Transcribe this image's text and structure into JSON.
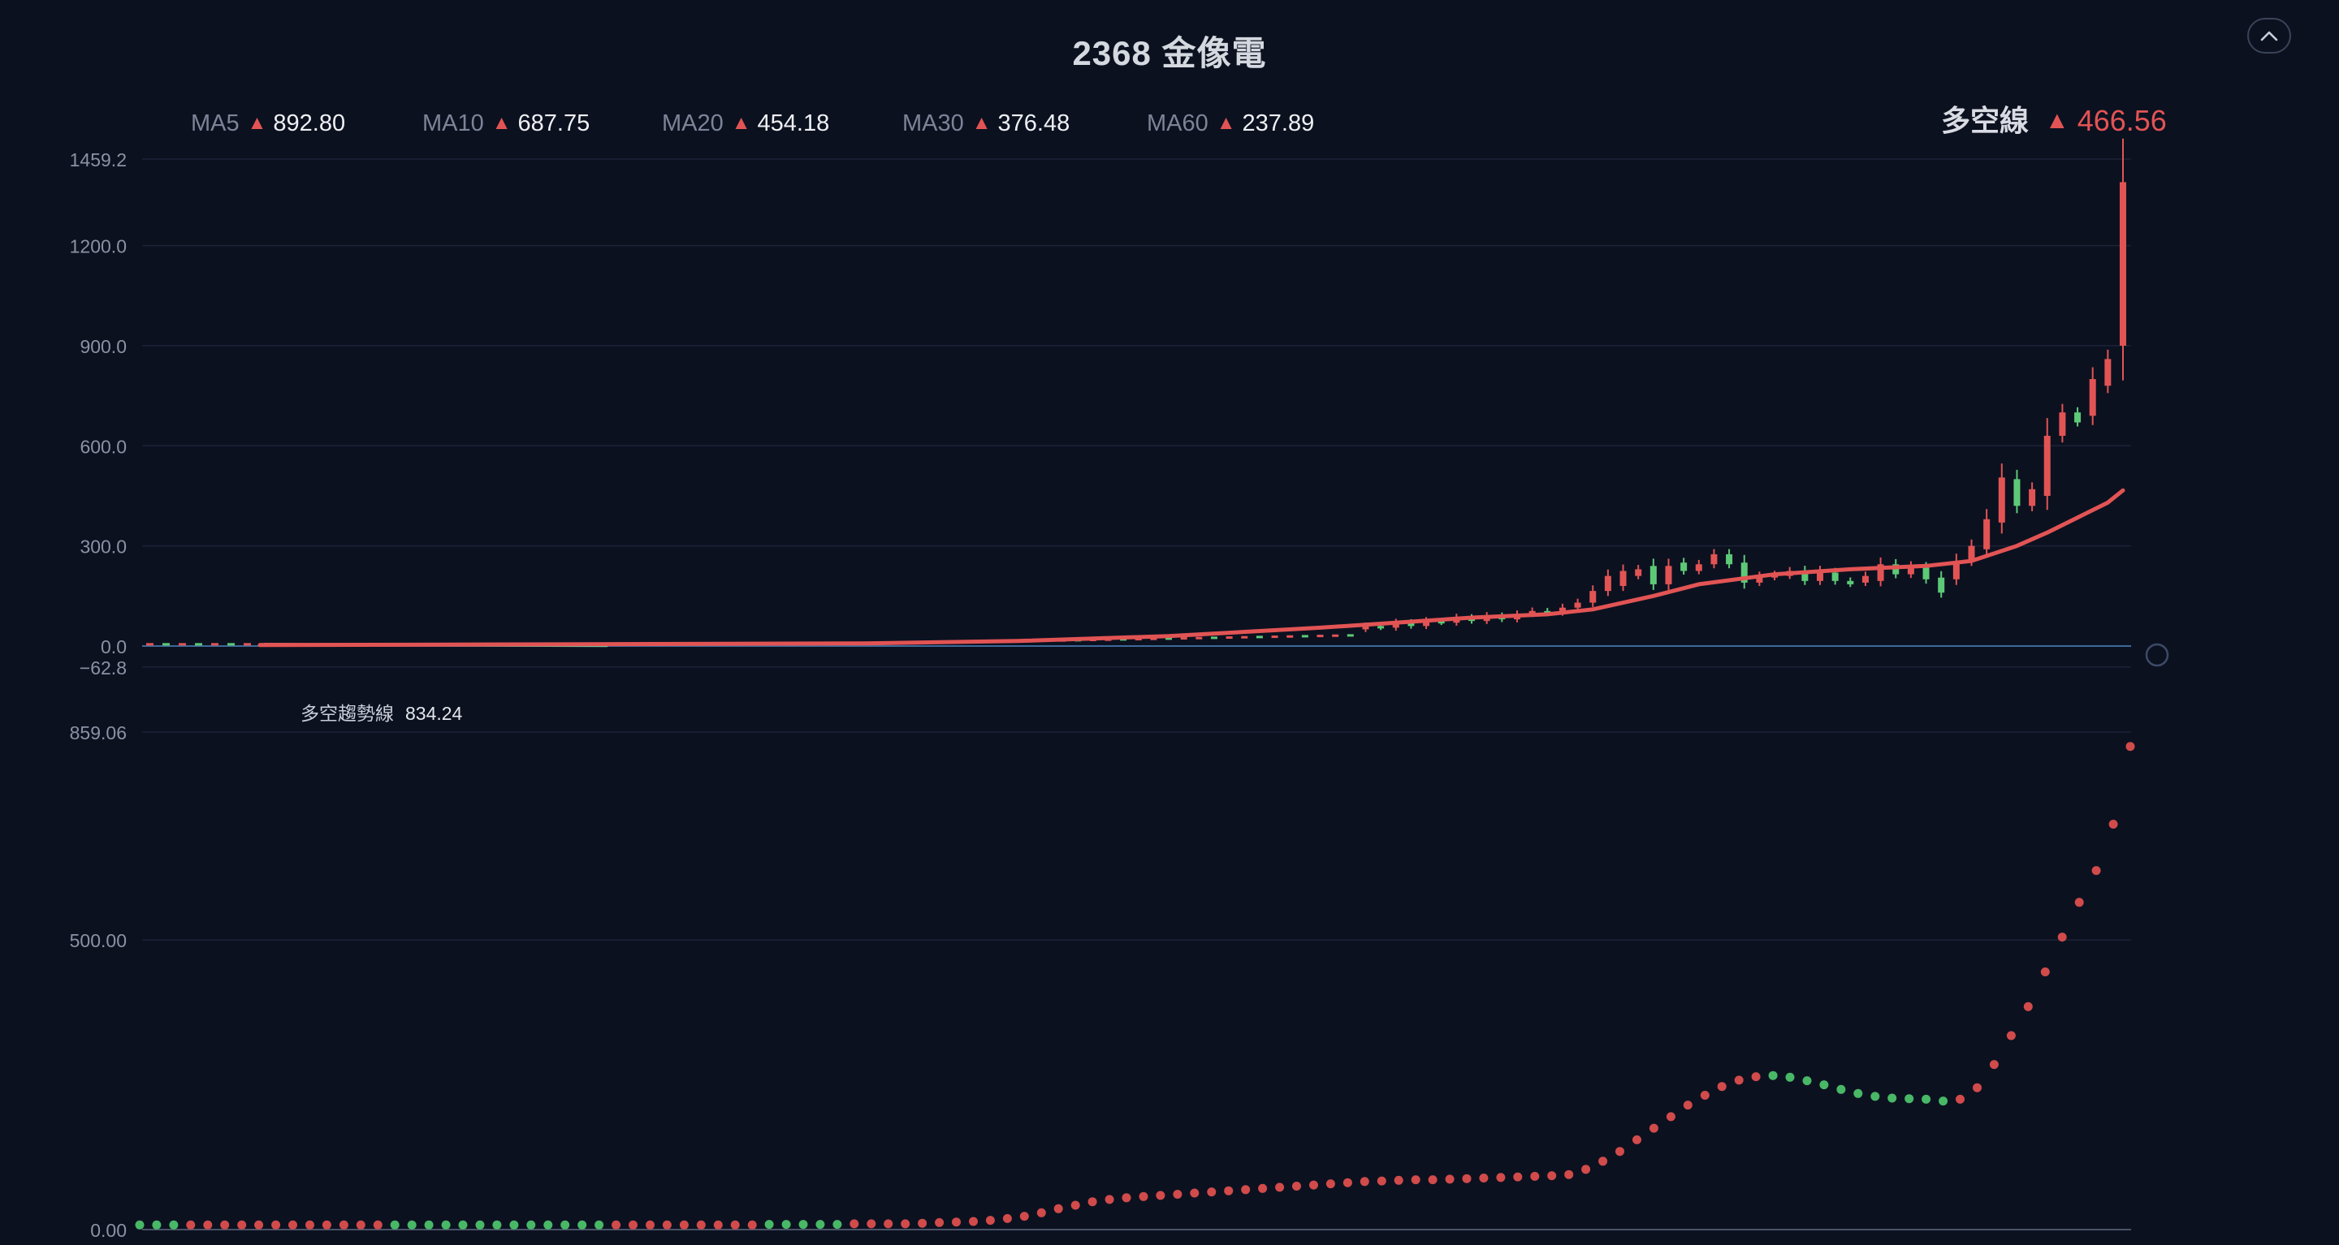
{
  "title": "2368 金像電",
  "icons": {
    "collapse": "chevron-up-icon",
    "indicator": "circle-outline-icon",
    "up_arrow": "triangle-up-icon"
  },
  "colors": {
    "background": "#0c1120",
    "up": "#e25454",
    "down": "#5dc977",
    "line": "#e25454",
    "grid": "#1c2336",
    "axis_text": "#8a92a3",
    "baseline": "#3c6a9a"
  },
  "ma_legend": [
    {
      "name": "MA5",
      "value": "892.80"
    },
    {
      "name": "MA10",
      "value": "687.75"
    },
    {
      "name": "MA20",
      "value": "454.18"
    },
    {
      "name": "MA30",
      "value": "376.48"
    },
    {
      "name": "MA60",
      "value": "237.89"
    }
  ],
  "up_symbol": "▲",
  "dk_legend": {
    "name": "多空線",
    "value": "466.56"
  },
  "sub_legend": {
    "name": "多空趨勢線",
    "value": "834.24"
  },
  "chart_data": [
    {
      "type": "candlestick",
      "title": "",
      "yticks": [
        "1459.2",
        "1200.0",
        "900.0",
        "600.0",
        "300.0",
        "0.0",
        "−62.8"
      ],
      "ylim": [
        -62.8,
        1459.2
      ],
      "grid": true,
      "n_bars": 120,
      "candles": [
        {
          "i": 73,
          "o": 50,
          "c": 60
        },
        {
          "i": 74,
          "o": 60,
          "c": 55
        },
        {
          "i": 75,
          "o": 55,
          "c": 70
        },
        {
          "i": 76,
          "o": 70,
          "c": 60
        },
        {
          "i": 77,
          "o": 60,
          "c": 75
        },
        {
          "i": 78,
          "o": 75,
          "c": 70
        },
        {
          "i": 79,
          "o": 70,
          "c": 85
        },
        {
          "i": 80,
          "o": 85,
          "c": 75
        },
        {
          "i": 81,
          "o": 75,
          "c": 90
        },
        {
          "i": 82,
          "o": 90,
          "c": 80
        },
        {
          "i": 83,
          "o": 80,
          "c": 95
        },
        {
          "i": 84,
          "o": 95,
          "c": 105
        },
        {
          "i": 85,
          "o": 105,
          "c": 100
        },
        {
          "i": 86,
          "o": 100,
          "c": 115
        },
        {
          "i": 87,
          "o": 115,
          "c": 130
        },
        {
          "i": 88,
          "o": 130,
          "c": 165
        },
        {
          "i": 89,
          "o": 165,
          "c": 210
        },
        {
          "i": 90,
          "o": 180,
          "c": 225
        },
        {
          "i": 91,
          "o": 210,
          "c": 230
        },
        {
          "i": 92,
          "o": 240,
          "c": 185
        },
        {
          "i": 93,
          "o": 185,
          "c": 240
        },
        {
          "i": 94,
          "o": 250,
          "c": 225
        },
        {
          "i": 95,
          "o": 225,
          "c": 245
        },
        {
          "i": 96,
          "o": 245,
          "c": 275
        },
        {
          "i": 97,
          "o": 275,
          "c": 245
        },
        {
          "i": 98,
          "o": 250,
          "c": 190
        },
        {
          "i": 99,
          "o": 190,
          "c": 210
        },
        {
          "i": 100,
          "o": 205,
          "c": 215
        },
        {
          "i": 101,
          "o": 210,
          "c": 225
        },
        {
          "i": 102,
          "o": 225,
          "c": 195
        },
        {
          "i": 103,
          "o": 195,
          "c": 225
        },
        {
          "i": 104,
          "o": 220,
          "c": 195
        },
        {
          "i": 105,
          "o": 195,
          "c": 185
        },
        {
          "i": 106,
          "o": 190,
          "c": 210
        },
        {
          "i": 107,
          "o": 195,
          "c": 245
        },
        {
          "i": 108,
          "o": 245,
          "c": 215
        },
        {
          "i": 109,
          "o": 215,
          "c": 240
        },
        {
          "i": 110,
          "o": 235,
          "c": 200
        },
        {
          "i": 111,
          "o": 205,
          "c": 160
        },
        {
          "i": 112,
          "o": 200,
          "c": 255
        },
        {
          "i": 113,
          "o": 255,
          "c": 300
        },
        {
          "i": 114,
          "o": 290,
          "c": 380
        },
        {
          "i": 115,
          "o": 370,
          "c": 505
        },
        {
          "i": 116,
          "o": 500,
          "c": 420
        },
        {
          "i": 117,
          "o": 420,
          "c": 470
        },
        {
          "i": 118,
          "o": 450,
          "c": 630
        },
        {
          "i": 119,
          "o": 630,
          "c": 700
        },
        {
          "i": 120,
          "o": 700,
          "c": 670
        },
        {
          "i": 121,
          "o": 690,
          "c": 800
        },
        {
          "i": 122,
          "o": 780,
          "c": 860
        },
        {
          "i": 123,
          "o": 900,
          "c": 1390
        }
      ],
      "line": {
        "name": "多空線",
        "x": [
          0,
          20,
          40,
          50,
          60,
          70,
          80,
          85,
          88,
          92,
          95,
          100,
          105,
          110,
          113,
          116,
          118,
          120,
          122,
          123
        ],
        "y": [
          3,
          5,
          8,
          15,
          30,
          55,
          85,
          95,
          110,
          150,
          185,
          215,
          230,
          240,
          255,
          300,
          340,
          385,
          430,
          466.56
        ]
      }
    },
    {
      "type": "scatter",
      "title": "",
      "yticks": [
        "859.06",
        "500.00",
        "0.00"
      ],
      "ylim": [
        0,
        859.06
      ],
      "grid": true,
      "n_points": 120,
      "points": [
        {
          "i": 0,
          "v": 8,
          "up": false
        },
        {
          "i": 1,
          "v": 8,
          "up": false
        },
        {
          "i": 2,
          "v": 8,
          "up": false
        },
        {
          "i": 3,
          "v": 8,
          "up": true
        },
        {
          "i": 4,
          "v": 8,
          "up": true
        },
        {
          "i": 5,
          "v": 8,
          "up": true
        },
        {
          "i": 6,
          "v": 8,
          "up": true
        },
        {
          "i": 7,
          "v": 8,
          "up": true
        },
        {
          "i": 8,
          "v": 8,
          "up": true
        },
        {
          "i": 9,
          "v": 8,
          "up": true
        },
        {
          "i": 10,
          "v": 8,
          "up": true
        },
        {
          "i": 11,
          "v": 8,
          "up": true
        },
        {
          "i": 12,
          "v": 8,
          "up": true
        },
        {
          "i": 13,
          "v": 8,
          "up": true
        },
        {
          "i": 14,
          "v": 8,
          "up": true
        },
        {
          "i": 15,
          "v": 8,
          "up": false
        },
        {
          "i": 16,
          "v": 8,
          "up": false
        },
        {
          "i": 17,
          "v": 8,
          "up": false
        },
        {
          "i": 18,
          "v": 8,
          "up": false
        },
        {
          "i": 19,
          "v": 8,
          "up": false
        },
        {
          "i": 20,
          "v": 8,
          "up": false
        },
        {
          "i": 21,
          "v": 8,
          "up": false
        },
        {
          "i": 22,
          "v": 8,
          "up": false
        },
        {
          "i": 23,
          "v": 8,
          "up": false
        },
        {
          "i": 24,
          "v": 8,
          "up": false
        },
        {
          "i": 25,
          "v": 8,
          "up": false
        },
        {
          "i": 26,
          "v": 8,
          "up": false
        },
        {
          "i": 27,
          "v": 8,
          "up": false
        },
        {
          "i": 28,
          "v": 8,
          "up": true
        },
        {
          "i": 29,
          "v": 8,
          "up": true
        },
        {
          "i": 30,
          "v": 8,
          "up": true
        },
        {
          "i": 31,
          "v": 8,
          "up": true
        },
        {
          "i": 32,
          "v": 8,
          "up": true
        },
        {
          "i": 33,
          "v": 8,
          "up": true
        },
        {
          "i": 34,
          "v": 8,
          "up": true
        },
        {
          "i": 35,
          "v": 8,
          "up": true
        },
        {
          "i": 36,
          "v": 8,
          "up": true
        },
        {
          "i": 37,
          "v": 9,
          "up": false
        },
        {
          "i": 38,
          "v": 9,
          "up": false
        },
        {
          "i": 39,
          "v": 9,
          "up": false
        },
        {
          "i": 40,
          "v": 9,
          "up": false
        },
        {
          "i": 41,
          "v": 9,
          "up": false
        },
        {
          "i": 42,
          "v": 10,
          "up": true
        },
        {
          "i": 43,
          "v": 10,
          "up": true
        },
        {
          "i": 44,
          "v": 10,
          "up": true
        },
        {
          "i": 45,
          "v": 10,
          "up": true
        },
        {
          "i": 46,
          "v": 11,
          "up": true
        },
        {
          "i": 47,
          "v": 12,
          "up": true
        },
        {
          "i": 48,
          "v": 13,
          "up": true
        },
        {
          "i": 49,
          "v": 14,
          "up": true
        },
        {
          "i": 50,
          "v": 16,
          "up": true
        },
        {
          "i": 51,
          "v": 19,
          "up": true
        },
        {
          "i": 52,
          "v": 23,
          "up": true
        },
        {
          "i": 53,
          "v": 29,
          "up": true
        },
        {
          "i": 54,
          "v": 36,
          "up": true
        },
        {
          "i": 55,
          "v": 42,
          "up": true
        },
        {
          "i": 56,
          "v": 48,
          "up": true
        },
        {
          "i": 57,
          "v": 52,
          "up": true
        },
        {
          "i": 58,
          "v": 55,
          "up": true
        },
        {
          "i": 59,
          "v": 57,
          "up": true
        },
        {
          "i": 60,
          "v": 59,
          "up": true
        },
        {
          "i": 61,
          "v": 61,
          "up": true
        },
        {
          "i": 62,
          "v": 63,
          "up": true
        },
        {
          "i": 63,
          "v": 65,
          "up": true
        },
        {
          "i": 64,
          "v": 67,
          "up": true
        },
        {
          "i": 65,
          "v": 69,
          "up": true
        },
        {
          "i": 66,
          "v": 71,
          "up": true
        },
        {
          "i": 67,
          "v": 73,
          "up": true
        },
        {
          "i": 68,
          "v": 75,
          "up": true
        },
        {
          "i": 69,
          "v": 77,
          "up": true
        },
        {
          "i": 70,
          "v": 79,
          "up": true
        },
        {
          "i": 71,
          "v": 81,
          "up": true
        },
        {
          "i": 72,
          "v": 83,
          "up": true
        },
        {
          "i": 73,
          "v": 84,
          "up": true
        },
        {
          "i": 74,
          "v": 85,
          "up": true
        },
        {
          "i": 75,
          "v": 86,
          "up": true
        },
        {
          "i": 76,
          "v": 86,
          "up": true
        },
        {
          "i": 77,
          "v": 87,
          "up": true
        },
        {
          "i": 78,
          "v": 88,
          "up": true
        },
        {
          "i": 79,
          "v": 89,
          "up": true
        },
        {
          "i": 80,
          "v": 90,
          "up": true
        },
        {
          "i": 81,
          "v": 91,
          "up": true
        },
        {
          "i": 82,
          "v": 92,
          "up": true
        },
        {
          "i": 83,
          "v": 93,
          "up": true
        },
        {
          "i": 84,
          "v": 95,
          "up": true
        },
        {
          "i": 85,
          "v": 104,
          "up": true
        },
        {
          "i": 86,
          "v": 118,
          "up": true
        },
        {
          "i": 87,
          "v": 135,
          "up": true
        },
        {
          "i": 88,
          "v": 155,
          "up": true
        },
        {
          "i": 89,
          "v": 175,
          "up": true
        },
        {
          "i": 90,
          "v": 195,
          "up": true
        },
        {
          "i": 91,
          "v": 215,
          "up": true
        },
        {
          "i": 92,
          "v": 232,
          "up": true
        },
        {
          "i": 93,
          "v": 247,
          "up": true
        },
        {
          "i": 94,
          "v": 258,
          "up": true
        },
        {
          "i": 95,
          "v": 264,
          "up": true
        },
        {
          "i": 96,
          "v": 266,
          "up": false
        },
        {
          "i": 97,
          "v": 263,
          "up": false
        },
        {
          "i": 98,
          "v": 257,
          "up": false
        },
        {
          "i": 99,
          "v": 250,
          "up": false
        },
        {
          "i": 100,
          "v": 242,
          "up": false
        },
        {
          "i": 101,
          "v": 235,
          "up": false
        },
        {
          "i": 102,
          "v": 230,
          "up": false
        },
        {
          "i": 103,
          "v": 227,
          "up": false
        },
        {
          "i": 104,
          "v": 226,
          "up": false
        },
        {
          "i": 105,
          "v": 225,
          "up": false
        },
        {
          "i": 106,
          "v": 222,
          "up": false
        },
        {
          "i": 107,
          "v": 225,
          "up": true
        },
        {
          "i": 108,
          "v": 245,
          "up": true
        },
        {
          "i": 109,
          "v": 285,
          "up": true
        },
        {
          "i": 110,
          "v": 335,
          "up": true
        },
        {
          "i": 111,
          "v": 385,
          "up": true
        },
        {
          "i": 112,
          "v": 445,
          "up": true
        },
        {
          "i": 113,
          "v": 505,
          "up": true
        },
        {
          "i": 114,
          "v": 565,
          "up": true
        },
        {
          "i": 115,
          "v": 620,
          "up": true
        },
        {
          "i": 116,
          "v": 700,
          "up": true
        },
        {
          "i": 117,
          "v": 834.24,
          "up": true
        }
      ]
    }
  ]
}
